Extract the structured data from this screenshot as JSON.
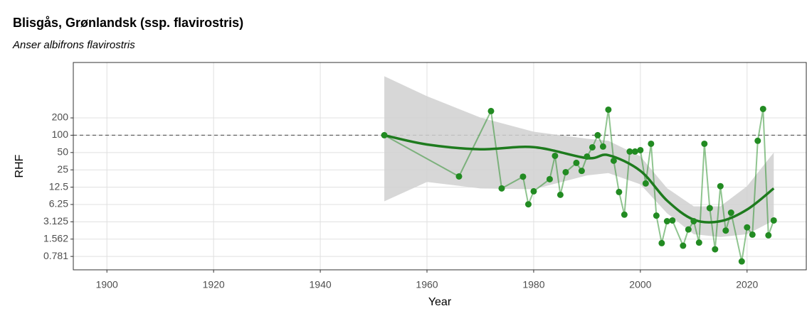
{
  "chart_data": {
    "type": "line",
    "title": "Blisgås, Grønlandsk (ssp. flavirostris)",
    "subtitle": "Anser albifrons flavirostris",
    "xlabel": "Year",
    "ylabel": "RHF",
    "ylog": true,
    "grid": true,
    "xlim": [
      1893.7,
      2031.1
    ],
    "ylim": [
      0.457,
      1838
    ],
    "xticks": [
      1900,
      1920,
      1940,
      1960,
      1980,
      2000,
      2020
    ],
    "yticks": [
      {
        "value": 0.78125,
        "label": "0.781"
      },
      {
        "value": 1.5625,
        "label": "1.562"
      },
      3.125,
      6.25,
      12.5,
      25,
      50,
      100,
      200
    ],
    "reference_line": 100,
    "series": [
      {
        "color": "#228b22",
        "x": [
          1952,
          1966,
          1972,
          1974,
          1978,
          1979,
          1980,
          1983,
          1984,
          1985,
          1986,
          1988,
          1989,
          1990,
          1991,
          1992,
          1993,
          1994,
          1995,
          1996,
          1997,
          1998,
          1999,
          2000,
          2001,
          2002,
          2003,
          2004,
          2005,
          2006,
          2008,
          2009,
          2010,
          2011,
          2012,
          2013,
          2014,
          2015,
          2016,
          2017,
          2019,
          2020,
          2021,
          2022,
          2023,
          2024,
          2025
        ],
        "values": [
          100,
          19.2,
          263,
          11.9,
          19,
          6.3,
          10.6,
          17.2,
          43.8,
          9.2,
          22.8,
          33,
          24,
          42.6,
          61.6,
          100,
          63.5,
          278,
          36,
          10.3,
          4.16,
          52,
          52,
          55,
          14.5,
          71,
          4.0,
          1.33,
          3.2,
          3.3,
          1.2,
          2.3,
          3.2,
          1.36,
          71,
          5.4,
          1.04,
          13,
          2.2,
          4.5,
          0.64,
          2.5,
          1.87,
          80,
          286,
          1.82,
          3.3
        ]
      }
    ],
    "smooth": {
      "color": "#1e7b1e",
      "x": [
        1952,
        1960,
        1970,
        1980,
        1990,
        1994,
        2000,
        2005,
        2010,
        2015,
        2020,
        2025
      ],
      "values": [
        100,
        69,
        57,
        62,
        40,
        45,
        24,
        7.3,
        3.4,
        3.2,
        5.1,
        11.9
      ],
      "lower": [
        7.1,
        15.4,
        11.9,
        11.5,
        20,
        22,
        14,
        4.4,
        1.9,
        1.7,
        1.9,
        3.3
      ],
      "upper": [
        1060,
        476,
        203,
        115,
        87,
        80,
        43,
        12,
        5.8,
        5.8,
        13,
        50
      ]
    }
  }
}
